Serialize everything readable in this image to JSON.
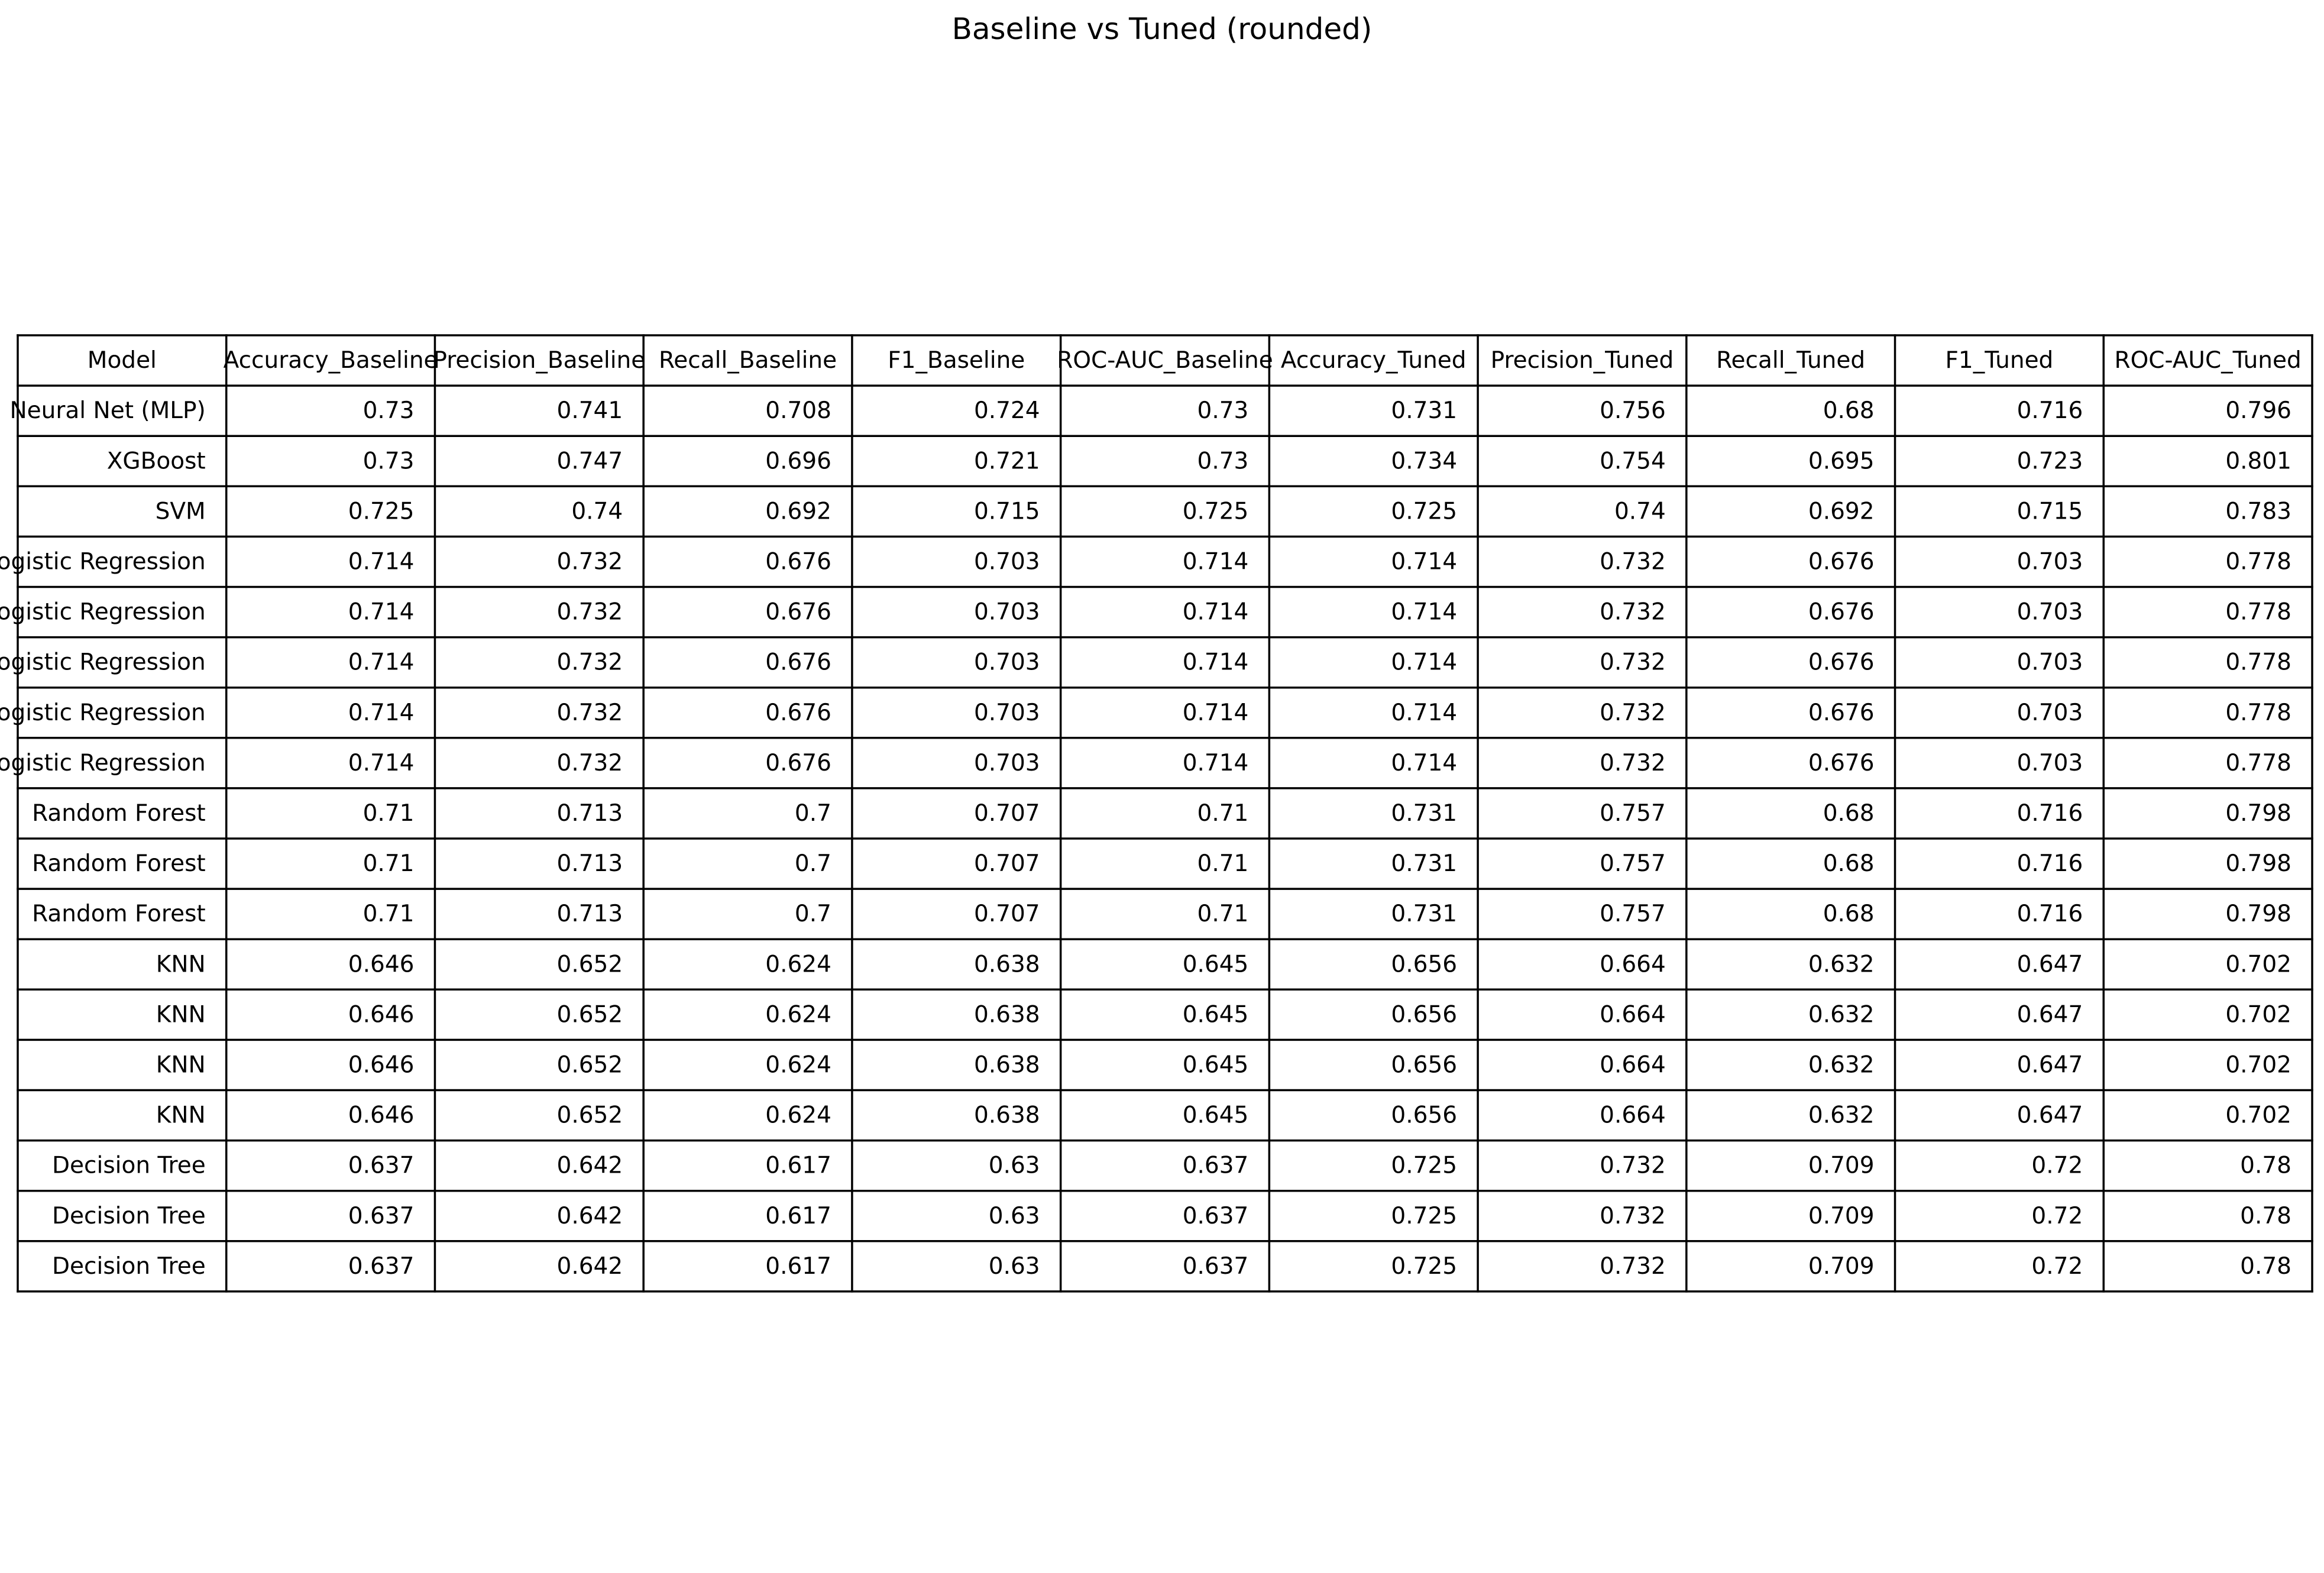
{
  "chart_data": {
    "type": "table",
    "title": "Baseline vs Tuned (rounded)",
    "columns": [
      "Model",
      "Accuracy_Baseline",
      "Precision_Baseline",
      "Recall_Baseline",
      "F1_Baseline",
      "ROC-AUC_Baseline",
      "Accuracy_Tuned",
      "Precision_Tuned",
      "Recall_Tuned",
      "F1_Tuned",
      "ROC-AUC_Tuned"
    ],
    "rows": [
      [
        "Neural Net (MLP)",
        "0.73",
        "0.741",
        "0.708",
        "0.724",
        "0.73",
        "0.731",
        "0.756",
        "0.68",
        "0.716",
        "0.796"
      ],
      [
        "XGBoost",
        "0.73",
        "0.747",
        "0.696",
        "0.721",
        "0.73",
        "0.734",
        "0.754",
        "0.695",
        "0.723",
        "0.801"
      ],
      [
        "SVM",
        "0.725",
        "0.74",
        "0.692",
        "0.715",
        "0.725",
        "0.725",
        "0.74",
        "0.692",
        "0.715",
        "0.783"
      ],
      [
        "Logistic Regression",
        "0.714",
        "0.732",
        "0.676",
        "0.703",
        "0.714",
        "0.714",
        "0.732",
        "0.676",
        "0.703",
        "0.778"
      ],
      [
        "Logistic Regression",
        "0.714",
        "0.732",
        "0.676",
        "0.703",
        "0.714",
        "0.714",
        "0.732",
        "0.676",
        "0.703",
        "0.778"
      ],
      [
        "Logistic Regression",
        "0.714",
        "0.732",
        "0.676",
        "0.703",
        "0.714",
        "0.714",
        "0.732",
        "0.676",
        "0.703",
        "0.778"
      ],
      [
        "Logistic Regression",
        "0.714",
        "0.732",
        "0.676",
        "0.703",
        "0.714",
        "0.714",
        "0.732",
        "0.676",
        "0.703",
        "0.778"
      ],
      [
        "Logistic Regression",
        "0.714",
        "0.732",
        "0.676",
        "0.703",
        "0.714",
        "0.714",
        "0.732",
        "0.676",
        "0.703",
        "0.778"
      ],
      [
        "Random Forest",
        "0.71",
        "0.713",
        "0.7",
        "0.707",
        "0.71",
        "0.731",
        "0.757",
        "0.68",
        "0.716",
        "0.798"
      ],
      [
        "Random Forest",
        "0.71",
        "0.713",
        "0.7",
        "0.707",
        "0.71",
        "0.731",
        "0.757",
        "0.68",
        "0.716",
        "0.798"
      ],
      [
        "Random Forest",
        "0.71",
        "0.713",
        "0.7",
        "0.707",
        "0.71",
        "0.731",
        "0.757",
        "0.68",
        "0.716",
        "0.798"
      ],
      [
        "KNN",
        "0.646",
        "0.652",
        "0.624",
        "0.638",
        "0.645",
        "0.656",
        "0.664",
        "0.632",
        "0.647",
        "0.702"
      ],
      [
        "KNN",
        "0.646",
        "0.652",
        "0.624",
        "0.638",
        "0.645",
        "0.656",
        "0.664",
        "0.632",
        "0.647",
        "0.702"
      ],
      [
        "KNN",
        "0.646",
        "0.652",
        "0.624",
        "0.638",
        "0.645",
        "0.656",
        "0.664",
        "0.632",
        "0.647",
        "0.702"
      ],
      [
        "KNN",
        "0.646",
        "0.652",
        "0.624",
        "0.638",
        "0.645",
        "0.656",
        "0.664",
        "0.632",
        "0.647",
        "0.702"
      ],
      [
        "Decision Tree",
        "0.637",
        "0.642",
        "0.617",
        "0.63",
        "0.637",
        "0.725",
        "0.732",
        "0.709",
        "0.72",
        "0.78"
      ],
      [
        "Decision Tree",
        "0.637",
        "0.642",
        "0.617",
        "0.63",
        "0.637",
        "0.725",
        "0.732",
        "0.709",
        "0.72",
        "0.78"
      ],
      [
        "Decision Tree",
        "0.637",
        "0.642",
        "0.617",
        "0.63",
        "0.637",
        "0.725",
        "0.732",
        "0.709",
        "0.72",
        "0.78"
      ]
    ]
  }
}
